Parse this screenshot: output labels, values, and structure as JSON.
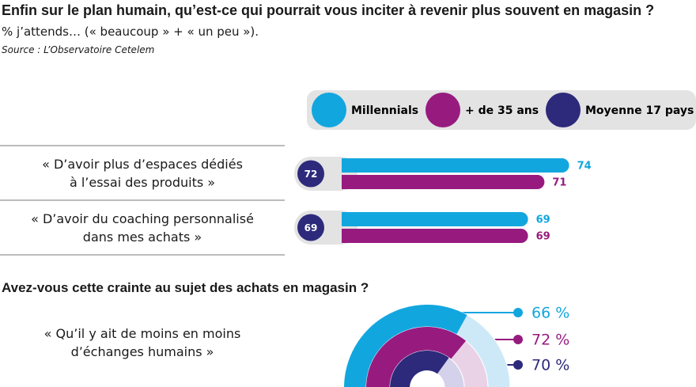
{
  "title": "Enfin sur le plan humain, qu’est-ce qui pourrait vous inciter à revenir plus souvent en magasin ?",
  "subtitle": "% j’attends… (« beaucoup » + « un peu »).",
  "source": "Source : L’Observatoire Cetelem",
  "chart_data": [
    {
      "type": "bar",
      "orientation": "horizontal",
      "categories": [
        "« D’avoir plus d’espaces dédiés\nà l’essai des produits »",
        "« D’avoir du coaching personnalisé\ndans mes achats »"
      ],
      "series": [
        {
          "name": "Millennials",
          "color": "#12a6df",
          "values": [
            74,
            69
          ]
        },
        {
          "name": "+ de 35 ans",
          "color": "#971b7f",
          "values": [
            71,
            69
          ]
        },
        {
          "name": "Moyenne 17 pays",
          "color": "#2d2a7c",
          "values": [
            72,
            69
          ],
          "style": "circle"
        }
      ]
    },
    {
      "type": "semidonut",
      "title": "Avez-vous cette crainte au sujet des achats en magasin ?",
      "category": "« Qu’il y ait de moins en moins\nd’échanges humains »",
      "values": [
        66,
        72,
        70
      ],
      "value_labels": [
        "66 %",
        "72 %",
        "70 %"
      ],
      "colors": [
        "#12a6df",
        "#971b7f",
        "#2d2a7c"
      ],
      "background_colors": [
        "#cde9f8",
        "#ead2e6",
        "#d4d2ea"
      ]
    }
  ]
}
